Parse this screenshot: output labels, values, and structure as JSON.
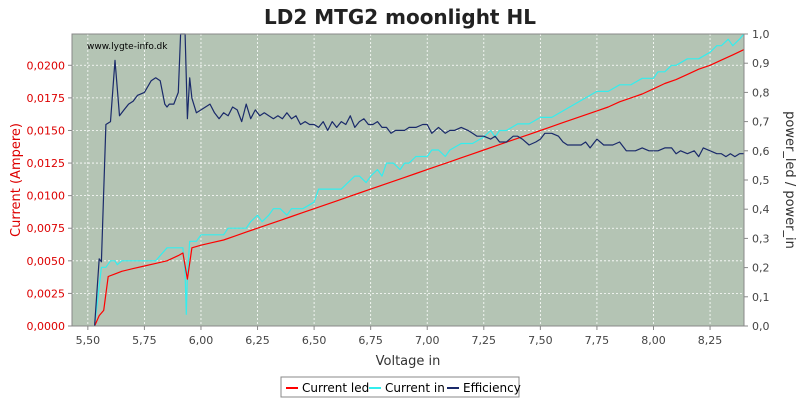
{
  "chart_data": {
    "type": "line",
    "title": "LD2 MTG2 moonlight HL",
    "xlabel": "Voltage in",
    "ylabel_left": "Current (Ampere)",
    "ylabel_right": "power_led / power_in",
    "watermark": "www.lygte-info.dk",
    "xlim": [
      5.43,
      8.4
    ],
    "ylim_left": [
      0,
      0.0224
    ],
    "ylim_right": [
      0,
      1.0
    ],
    "x_ticks": [
      5.5,
      5.75,
      6.0,
      6.25,
      6.5,
      6.75,
      7.0,
      7.25,
      7.5,
      7.75,
      8.0,
      8.25
    ],
    "x_tick_labels": [
      "5,50",
      "5,75",
      "6,00",
      "6,25",
      "6,50",
      "6,75",
      "7,00",
      "7,25",
      "7,50",
      "7,75",
      "8,00",
      "8,25"
    ],
    "y_left_ticks": [
      0.0,
      0.0025,
      0.005,
      0.0075,
      0.01,
      0.0125,
      0.015,
      0.0175,
      0.02
    ],
    "y_left_tick_labels": [
      "0,0000",
      "0,0025",
      "0,0050",
      "0,0075",
      "0,0100",
      "0,0125",
      "0,0150",
      "0,0175",
      "0,0200"
    ],
    "y_right_ticks": [
      0.0,
      0.1,
      0.2,
      0.3,
      0.4,
      0.5,
      0.6,
      0.7,
      0.8,
      0.9,
      1.0
    ],
    "y_right_tick_labels": [
      "0,0",
      "0,1",
      "0,2",
      "0,3",
      "0,4",
      "0,5",
      "0,6",
      "0,7",
      "0,8",
      "0,9",
      "1,0"
    ],
    "grid": true,
    "legend_placement": "bottom",
    "colors": {
      "plot_background": "#b4c4b4",
      "current_led": "#ff0000",
      "current_in": "#33eeee",
      "efficiency": "#1a2a6a",
      "left_axis": "#dd0000"
    },
    "series": [
      {
        "name": "Current led",
        "axis": "left",
        "points": [
          [
            5.53,
            0.0
          ],
          [
            5.55,
            0.0008
          ],
          [
            5.57,
            0.0012
          ],
          [
            5.59,
            0.0038
          ],
          [
            5.62,
            0.004
          ],
          [
            5.65,
            0.0042
          ],
          [
            5.7,
            0.0044
          ],
          [
            5.75,
            0.0046
          ],
          [
            5.8,
            0.0048
          ],
          [
            5.85,
            0.005
          ],
          [
            5.9,
            0.0054
          ],
          [
            5.92,
            0.0056
          ],
          [
            5.94,
            0.0036
          ],
          [
            5.96,
            0.006
          ],
          [
            6.0,
            0.0062
          ],
          [
            6.05,
            0.0064
          ],
          [
            6.1,
            0.0066
          ],
          [
            6.15,
            0.0069
          ],
          [
            6.2,
            0.0072
          ],
          [
            6.25,
            0.0075
          ],
          [
            6.3,
            0.0078
          ],
          [
            6.35,
            0.0081
          ],
          [
            6.4,
            0.0084
          ],
          [
            6.45,
            0.0087
          ],
          [
            6.5,
            0.009
          ],
          [
            6.55,
            0.0093
          ],
          [
            6.6,
            0.0096
          ],
          [
            6.65,
            0.0099
          ],
          [
            6.7,
            0.0102
          ],
          [
            6.75,
            0.0105
          ],
          [
            6.8,
            0.0108
          ],
          [
            6.85,
            0.0111
          ],
          [
            6.9,
            0.0114
          ],
          [
            6.95,
            0.0117
          ],
          [
            7.0,
            0.012
          ],
          [
            7.05,
            0.0123
          ],
          [
            7.1,
            0.0126
          ],
          [
            7.15,
            0.0129
          ],
          [
            7.2,
            0.0132
          ],
          [
            7.25,
            0.0135
          ],
          [
            7.3,
            0.0138
          ],
          [
            7.35,
            0.0141
          ],
          [
            7.4,
            0.0144
          ],
          [
            7.45,
            0.0147
          ],
          [
            7.5,
            0.015
          ],
          [
            7.55,
            0.0153
          ],
          [
            7.6,
            0.0156
          ],
          [
            7.65,
            0.0159
          ],
          [
            7.7,
            0.0162
          ],
          [
            7.75,
            0.0165
          ],
          [
            7.8,
            0.0168
          ],
          [
            7.85,
            0.0172
          ],
          [
            7.9,
            0.0175
          ],
          [
            7.95,
            0.0178
          ],
          [
            8.0,
            0.0182
          ],
          [
            8.05,
            0.0186
          ],
          [
            8.1,
            0.0189
          ],
          [
            8.15,
            0.0193
          ],
          [
            8.2,
            0.0197
          ],
          [
            8.25,
            0.02
          ],
          [
            8.3,
            0.0204
          ],
          [
            8.35,
            0.0208
          ],
          [
            8.4,
            0.0212
          ]
        ]
      },
      {
        "name": "Current in",
        "axis": "left",
        "points": [
          [
            5.53,
            0.0
          ],
          [
            5.56,
            0.0045
          ],
          [
            5.58,
            0.0045
          ],
          [
            5.6,
            0.005
          ],
          [
            5.62,
            0.005
          ],
          [
            5.63,
            0.0047
          ],
          [
            5.65,
            0.005
          ],
          [
            5.7,
            0.005
          ],
          [
            5.75,
            0.005
          ],
          [
            5.8,
            0.005
          ],
          [
            5.85,
            0.006
          ],
          [
            5.9,
            0.006
          ],
          [
            5.92,
            0.006
          ],
          [
            5.93,
            0.004
          ],
          [
            5.935,
            0.0009
          ],
          [
            5.94,
            0.004
          ],
          [
            5.95,
            0.0065
          ],
          [
            5.97,
            0.0065
          ],
          [
            5.98,
            0.0065
          ],
          [
            6.0,
            0.007
          ],
          [
            6.05,
            0.007
          ],
          [
            6.1,
            0.007
          ],
          [
            6.12,
            0.0075
          ],
          [
            6.15,
            0.0075
          ],
          [
            6.2,
            0.0075
          ],
          [
            6.22,
            0.008
          ],
          [
            6.25,
            0.0085
          ],
          [
            6.27,
            0.008
          ],
          [
            6.3,
            0.0085
          ],
          [
            6.32,
            0.009
          ],
          [
            6.35,
            0.009
          ],
          [
            6.38,
            0.0085
          ],
          [
            6.4,
            0.009
          ],
          [
            6.45,
            0.009
          ],
          [
            6.5,
            0.0095
          ],
          [
            6.52,
            0.0105
          ],
          [
            6.55,
            0.0105
          ],
          [
            6.6,
            0.0105
          ],
          [
            6.62,
            0.0105
          ],
          [
            6.65,
            0.011
          ],
          [
            6.68,
            0.0115
          ],
          [
            6.7,
            0.0115
          ],
          [
            6.73,
            0.011
          ],
          [
            6.75,
            0.0115
          ],
          [
            6.78,
            0.012
          ],
          [
            6.8,
            0.0115
          ],
          [
            6.82,
            0.0125
          ],
          [
            6.85,
            0.0125
          ],
          [
            6.88,
            0.012
          ],
          [
            6.9,
            0.0125
          ],
          [
            6.92,
            0.0125
          ],
          [
            6.95,
            0.013
          ],
          [
            7.0,
            0.013
          ],
          [
            7.02,
            0.0135
          ],
          [
            7.05,
            0.0135
          ],
          [
            7.08,
            0.013
          ],
          [
            7.1,
            0.0135
          ],
          [
            7.15,
            0.014
          ],
          [
            7.2,
            0.014
          ],
          [
            7.25,
            0.0145
          ],
          [
            7.28,
            0.015
          ],
          [
            7.3,
            0.0145
          ],
          [
            7.32,
            0.015
          ],
          [
            7.35,
            0.015
          ],
          [
            7.4,
            0.0155
          ],
          [
            7.45,
            0.0155
          ],
          [
            7.5,
            0.016
          ],
          [
            7.55,
            0.016
          ],
          [
            7.6,
            0.0165
          ],
          [
            7.65,
            0.017
          ],
          [
            7.7,
            0.0175
          ],
          [
            7.75,
            0.018
          ],
          [
            7.8,
            0.018
          ],
          [
            7.85,
            0.0185
          ],
          [
            7.9,
            0.0185
          ],
          [
            7.95,
            0.019
          ],
          [
            8.0,
            0.019
          ],
          [
            8.02,
            0.0195
          ],
          [
            8.05,
            0.0195
          ],
          [
            8.08,
            0.02
          ],
          [
            8.1,
            0.02
          ],
          [
            8.15,
            0.0205
          ],
          [
            8.2,
            0.0205
          ],
          [
            8.25,
            0.021
          ],
          [
            8.28,
            0.0215
          ],
          [
            8.3,
            0.0215
          ],
          [
            8.33,
            0.022
          ],
          [
            8.35,
            0.0215
          ],
          [
            8.38,
            0.022
          ],
          [
            8.4,
            0.0224
          ]
        ]
      },
      {
        "name": "Efficiency",
        "axis": "right",
        "points": [
          [
            5.53,
            0.0
          ],
          [
            5.55,
            0.23
          ],
          [
            5.56,
            0.22
          ],
          [
            5.58,
            0.69
          ],
          [
            5.6,
            0.7
          ],
          [
            5.62,
            0.91
          ],
          [
            5.64,
            0.72
          ],
          [
            5.66,
            0.74
          ],
          [
            5.68,
            0.76
          ],
          [
            5.7,
            0.77
          ],
          [
            5.72,
            0.79
          ],
          [
            5.75,
            0.8
          ],
          [
            5.78,
            0.84
          ],
          [
            5.8,
            0.85
          ],
          [
            5.82,
            0.84
          ],
          [
            5.84,
            0.76
          ],
          [
            5.85,
            0.75
          ],
          [
            5.86,
            0.76
          ],
          [
            5.88,
            0.76
          ],
          [
            5.9,
            0.8
          ],
          [
            5.91,
            1.0
          ],
          [
            5.92,
            1.0
          ],
          [
            5.93,
            1.0
          ],
          [
            5.94,
            0.71
          ],
          [
            5.95,
            0.85
          ],
          [
            5.96,
            0.78
          ],
          [
            5.98,
            0.73
          ],
          [
            6.0,
            0.74
          ],
          [
            6.02,
            0.75
          ],
          [
            6.04,
            0.76
          ],
          [
            6.06,
            0.73
          ],
          [
            6.08,
            0.71
          ],
          [
            6.1,
            0.73
          ],
          [
            6.12,
            0.72
          ],
          [
            6.14,
            0.75
          ],
          [
            6.16,
            0.74
          ],
          [
            6.18,
            0.7
          ],
          [
            6.2,
            0.76
          ],
          [
            6.22,
            0.71
          ],
          [
            6.24,
            0.74
          ],
          [
            6.26,
            0.72
          ],
          [
            6.28,
            0.73
          ],
          [
            6.3,
            0.72
          ],
          [
            6.32,
            0.71
          ],
          [
            6.34,
            0.72
          ],
          [
            6.36,
            0.71
          ],
          [
            6.38,
            0.73
          ],
          [
            6.4,
            0.71
          ],
          [
            6.42,
            0.72
          ],
          [
            6.44,
            0.69
          ],
          [
            6.46,
            0.7
          ],
          [
            6.48,
            0.69
          ],
          [
            6.5,
            0.69
          ],
          [
            6.52,
            0.68
          ],
          [
            6.54,
            0.7
          ],
          [
            6.56,
            0.67
          ],
          [
            6.58,
            0.7
          ],
          [
            6.6,
            0.68
          ],
          [
            6.62,
            0.7
          ],
          [
            6.64,
            0.69
          ],
          [
            6.66,
            0.72
          ],
          [
            6.68,
            0.68
          ],
          [
            6.7,
            0.7
          ],
          [
            6.72,
            0.71
          ],
          [
            6.74,
            0.69
          ],
          [
            6.76,
            0.69
          ],
          [
            6.78,
            0.7
          ],
          [
            6.8,
            0.68
          ],
          [
            6.82,
            0.68
          ],
          [
            6.84,
            0.66
          ],
          [
            6.86,
            0.67
          ],
          [
            6.88,
            0.67
          ],
          [
            6.9,
            0.67
          ],
          [
            6.92,
            0.68
          ],
          [
            6.95,
            0.68
          ],
          [
            6.98,
            0.69
          ],
          [
            7.0,
            0.69
          ],
          [
            7.02,
            0.66
          ],
          [
            7.05,
            0.68
          ],
          [
            7.08,
            0.66
          ],
          [
            7.1,
            0.67
          ],
          [
            7.12,
            0.67
          ],
          [
            7.15,
            0.68
          ],
          [
            7.18,
            0.67
          ],
          [
            7.2,
            0.66
          ],
          [
            7.22,
            0.65
          ],
          [
            7.25,
            0.65
          ],
          [
            7.28,
            0.64
          ],
          [
            7.3,
            0.65
          ],
          [
            7.32,
            0.63
          ],
          [
            7.35,
            0.63
          ],
          [
            7.38,
            0.65
          ],
          [
            7.4,
            0.65
          ],
          [
            7.42,
            0.64
          ],
          [
            7.45,
            0.62
          ],
          [
            7.48,
            0.63
          ],
          [
            7.5,
            0.64
          ],
          [
            7.52,
            0.66
          ],
          [
            7.55,
            0.66
          ],
          [
            7.58,
            0.65
          ],
          [
            7.6,
            0.63
          ],
          [
            7.62,
            0.62
          ],
          [
            7.65,
            0.62
          ],
          [
            7.68,
            0.62
          ],
          [
            7.7,
            0.63
          ],
          [
            7.72,
            0.61
          ],
          [
            7.75,
            0.64
          ],
          [
            7.78,
            0.62
          ],
          [
            7.8,
            0.62
          ],
          [
            7.82,
            0.62
          ],
          [
            7.85,
            0.63
          ],
          [
            7.88,
            0.6
          ],
          [
            7.9,
            0.6
          ],
          [
            7.92,
            0.6
          ],
          [
            7.95,
            0.61
          ],
          [
            7.98,
            0.6
          ],
          [
            8.0,
            0.6
          ],
          [
            8.02,
            0.6
          ],
          [
            8.05,
            0.61
          ],
          [
            8.08,
            0.61
          ],
          [
            8.1,
            0.59
          ],
          [
            8.12,
            0.6
          ],
          [
            8.15,
            0.59
          ],
          [
            8.18,
            0.6
          ],
          [
            8.2,
            0.58
          ],
          [
            8.22,
            0.61
          ],
          [
            8.25,
            0.6
          ],
          [
            8.28,
            0.59
          ],
          [
            8.3,
            0.59
          ],
          [
            8.32,
            0.58
          ],
          [
            8.34,
            0.59
          ],
          [
            8.36,
            0.58
          ],
          [
            8.38,
            0.59
          ],
          [
            8.4,
            0.59
          ]
        ]
      }
    ]
  }
}
